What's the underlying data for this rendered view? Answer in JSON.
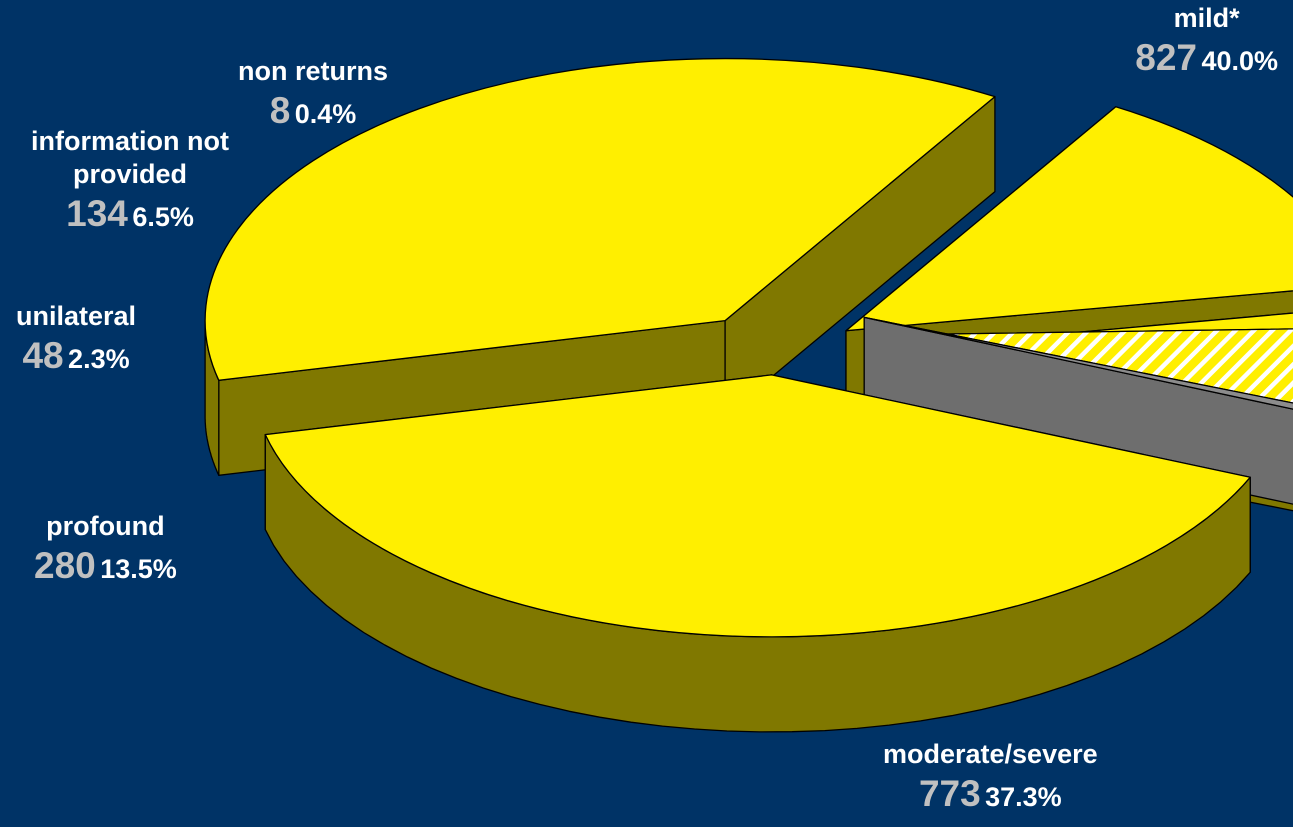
{
  "colors": {
    "background": "#003366",
    "slice_top": "#ffef00",
    "slice_side": "#807800",
    "gray_top": "#8c8c8c",
    "gray_side": "#6e6e6e",
    "outline": "#000000",
    "label_text": "#ffffff",
    "count_text": "#c0c0c0"
  },
  "chart_data": {
    "type": "pie",
    "style": "3d-exploded",
    "slices": [
      {
        "name": "mild*",
        "count": "827",
        "percent": "40.0%",
        "value": 827,
        "fill": "yellow"
      },
      {
        "name": "moderate/severe",
        "count": "773",
        "percent": "37.3%",
        "value": 773,
        "fill": "yellow"
      },
      {
        "name": "profound",
        "count": "280",
        "percent": "13.5%",
        "value": 280,
        "fill": "yellow"
      },
      {
        "name": "unilateral",
        "count": "48",
        "percent": "2.3%",
        "value": 48,
        "fill": "yellow"
      },
      {
        "name": "information not provided",
        "count": "134",
        "percent": "6.5%",
        "value": 134,
        "fill": "yellow-hatched"
      },
      {
        "name": "non returns",
        "count": "8",
        "percent": "0.4%",
        "value": 8,
        "fill": "gray"
      }
    ]
  }
}
